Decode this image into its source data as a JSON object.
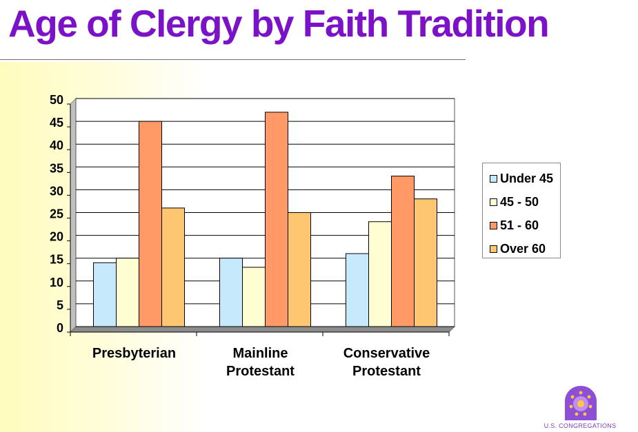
{
  "slide": {
    "title": "Age of Clergy by Faith Tradition",
    "logo_text": "U.S. CONGREGATIONS",
    "colors": {
      "title": "#7b12c7",
      "background_accent": "#fffcc0"
    }
  },
  "chart_data": {
    "type": "bar",
    "title": "",
    "xlabel": "",
    "ylabel": "",
    "ylim": [
      0,
      50
    ],
    "yticks": [
      0,
      5,
      10,
      15,
      20,
      25,
      30,
      35,
      40,
      45,
      50
    ],
    "grid": true,
    "legend_position": "right",
    "categories": [
      [
        "Presbyterian"
      ],
      [
        "Mainline",
        "Protestant"
      ],
      [
        "Conservative",
        "Protestant"
      ]
    ],
    "series": [
      {
        "name": "Under 45",
        "color": "#c6e9fb",
        "values": [
          14,
          15,
          16
        ]
      },
      {
        "name": "45 - 50",
        "color": "#fffdd2",
        "values": [
          15,
          13,
          23
        ]
      },
      {
        "name": "51 - 60",
        "color": "#ff9966",
        "values": [
          45,
          47,
          33
        ]
      },
      {
        "name": "Over 60",
        "color": "#ffc671",
        "values": [
          26,
          25,
          28
        ]
      }
    ]
  }
}
